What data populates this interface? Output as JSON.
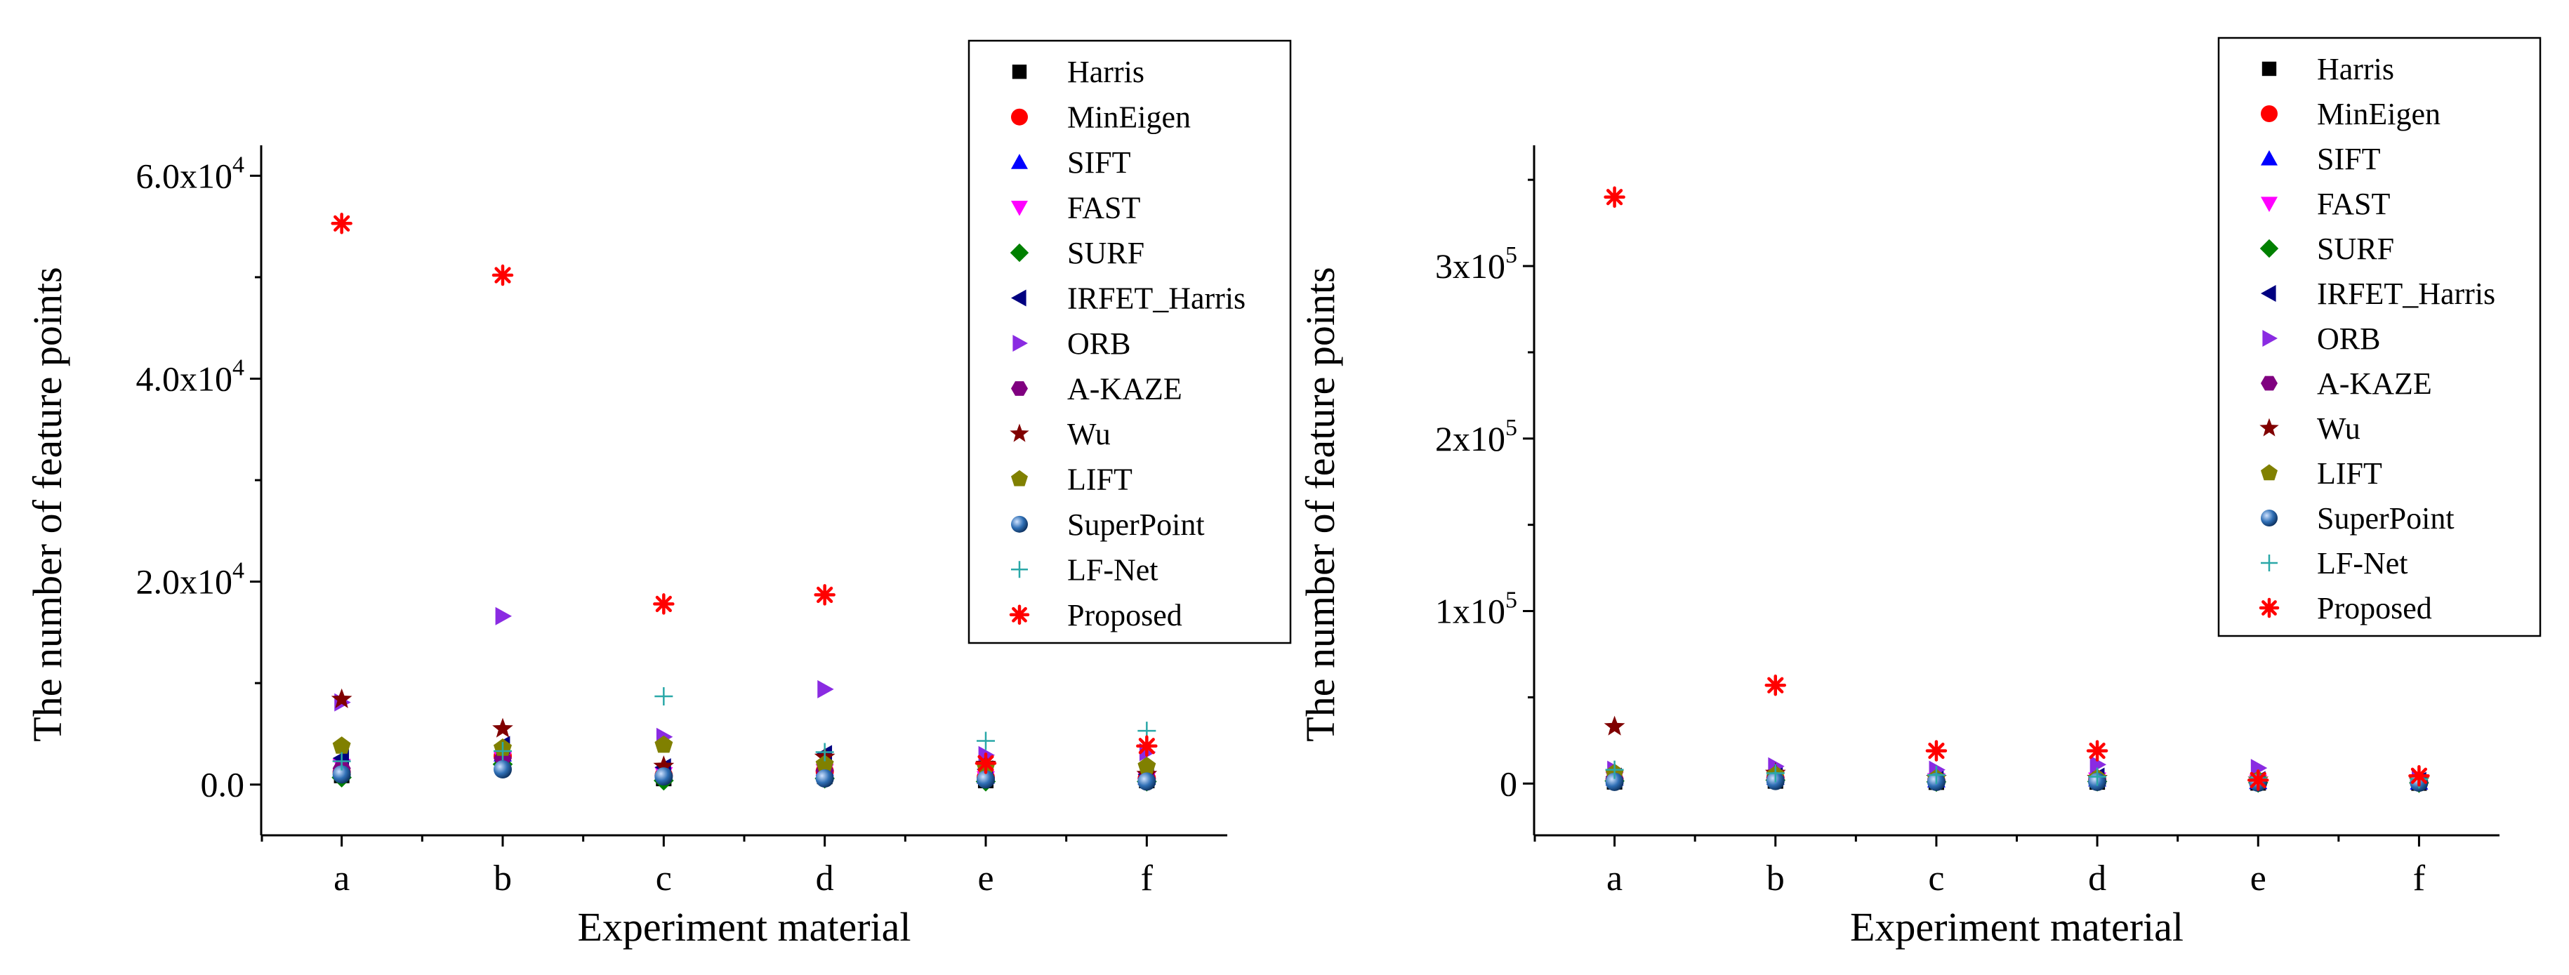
{
  "chart_data": [
    {
      "type": "scatter",
      "title": "",
      "xlabel": "Experiment material",
      "ylabel": "The number of feature points",
      "categories": [
        "a",
        "b",
        "c",
        "d",
        "e",
        "f"
      ],
      "ylim": [
        -5000,
        63000
      ],
      "yticks": [
        {
          "value": 0,
          "mant": "0.0",
          "exp": ""
        },
        {
          "value": 20000,
          "mant": "2.0x10",
          "exp": "4"
        },
        {
          "value": 40000,
          "mant": "4.0x10",
          "exp": "4"
        },
        {
          "value": 60000,
          "mant": "6.0x10",
          "exp": "4"
        }
      ],
      "minor_yticks": [
        10000,
        30000,
        50000
      ],
      "legend_position": "top-right",
      "series": [
        {
          "name": "Harris",
          "marker": "square",
          "color": "#000000",
          "values": [
            900,
            2200,
            600,
            800,
            400,
            400
          ]
        },
        {
          "name": "MinEigen",
          "marker": "circle",
          "color": "#ff0000",
          "values": [
            1200,
            2800,
            900,
            1300,
            700,
            600
          ]
        },
        {
          "name": "SIFT",
          "marker": "triangle-up",
          "color": "#0000ff",
          "values": [
            2000,
            3000,
            1300,
            1600,
            800,
            700
          ]
        },
        {
          "name": "FAST",
          "marker": "triangle-down",
          "color": "#ff00ff",
          "values": [
            1800,
            2500,
            1000,
            1300,
            600,
            500
          ]
        },
        {
          "name": "SURF",
          "marker": "diamond",
          "color": "#008000",
          "values": [
            700,
            2000,
            400,
            600,
            300,
            300
          ]
        },
        {
          "name": "IRFET_Harris",
          "marker": "triangle-left",
          "color": "#000080",
          "values": [
            2600,
            3900,
            1700,
            3000,
            1500,
            1000
          ]
        },
        {
          "name": "ORB",
          "marker": "triangle-right",
          "color": "#8a2be2",
          "values": [
            8100,
            16600,
            4700,
            9400,
            2900,
            3200
          ]
        },
        {
          "name": "A-KAZE",
          "marker": "hexagon",
          "color": "#800080",
          "values": [
            1600,
            2600,
            900,
            1400,
            700,
            600
          ]
        },
        {
          "name": "Wu",
          "marker": "star",
          "color": "#800000",
          "values": [
            8400,
            5500,
            1800,
            2700,
            2000,
            1000
          ]
        },
        {
          "name": "LIFT",
          "marker": "pentagon",
          "color": "#808000",
          "values": [
            3800,
            3600,
            3900,
            2000,
            1700,
            1800
          ]
        },
        {
          "name": "SuperPoint",
          "marker": "sphere",
          "color": "#1f5fa8",
          "values": [
            1000,
            1500,
            800,
            600,
            500,
            300
          ]
        },
        {
          "name": "LF-Net",
          "marker": "plus",
          "color": "#2aa8a8",
          "values": [
            2300,
            3300,
            8700,
            3200,
            4300,
            5300
          ]
        },
        {
          "name": "Proposed",
          "marker": "asterisk",
          "color": "#ff0000",
          "values": [
            55300,
            50200,
            17800,
            18700,
            2100,
            3800
          ]
        }
      ]
    },
    {
      "type": "scatter",
      "title": "",
      "xlabel": "Experiment material",
      "ylabel": "The number of feature points",
      "categories": [
        "a",
        "b",
        "c",
        "d",
        "e",
        "f"
      ],
      "ylim": [
        -30000,
        370000
      ],
      "yticks": [
        {
          "value": 0,
          "mant": "0",
          "exp": ""
        },
        {
          "value": 100000,
          "mant": "1x10",
          "exp": "5"
        },
        {
          "value": 200000,
          "mant": "2x10",
          "exp": "5"
        },
        {
          "value": 300000,
          "mant": "3x10",
          "exp": "5"
        }
      ],
      "minor_yticks": [
        50000,
        150000,
        250000,
        350000
      ],
      "legend_position": "top-right",
      "series": [
        {
          "name": "Harris",
          "marker": "square",
          "color": "#000000",
          "values": [
            1000,
            1500,
            800,
            900,
            400,
            300
          ]
        },
        {
          "name": "MinEigen",
          "marker": "circle",
          "color": "#ff0000",
          "values": [
            2000,
            3000,
            1500,
            2000,
            800,
            600
          ]
        },
        {
          "name": "SIFT",
          "marker": "triangle-up",
          "color": "#0000ff",
          "values": [
            3000,
            3500,
            2000,
            2500,
            1000,
            800
          ]
        },
        {
          "name": "FAST",
          "marker": "triangle-down",
          "color": "#ff00ff",
          "values": [
            2500,
            3000,
            1800,
            2200,
            900,
            700
          ]
        },
        {
          "name": "SURF",
          "marker": "diamond",
          "color": "#008000",
          "values": [
            1500,
            2000,
            1000,
            1200,
            500,
            400
          ]
        },
        {
          "name": "IRFET_Harris",
          "marker": "triangle-left",
          "color": "#000080",
          "values": [
            4000,
            5000,
            3000,
            4000,
            2000,
            1500
          ]
        },
        {
          "name": "ORB",
          "marker": "triangle-right",
          "color": "#8a2be2",
          "values": [
            8000,
            10000,
            8000,
            11000,
            9000,
            3000
          ]
        },
        {
          "name": "A-KAZE",
          "marker": "hexagon",
          "color": "#800080",
          "values": [
            3000,
            3500,
            2000,
            2500,
            1500,
            1000
          ]
        },
        {
          "name": "Wu",
          "marker": "star",
          "color": "#800000",
          "values": [
            33000,
            6000,
            3000,
            3000,
            2000,
            1500
          ]
        },
        {
          "name": "LIFT",
          "marker": "pentagon",
          "color": "#808000",
          "values": [
            6000,
            5000,
            3000,
            3000,
            2000,
            1500
          ]
        },
        {
          "name": "SuperPoint",
          "marker": "sphere",
          "color": "#1f5fa8",
          "values": [
            1000,
            1500,
            1000,
            1000,
            500,
            500
          ]
        },
        {
          "name": "LF-Net",
          "marker": "plus",
          "color": "#2aa8a8",
          "values": [
            8000,
            6000,
            5000,
            4000,
            3000,
            2500
          ]
        },
        {
          "name": "Proposed",
          "marker": "asterisk",
          "color": "#ff0000",
          "values": [
            340000,
            57000,
            19000,
            19000,
            2000,
            4500
          ]
        }
      ]
    }
  ]
}
